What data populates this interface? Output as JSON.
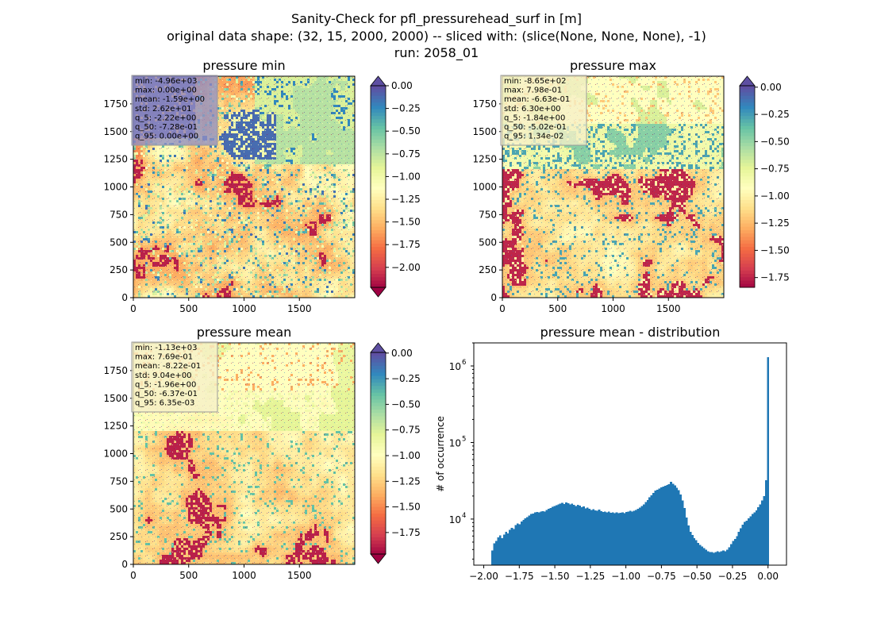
{
  "figure": {
    "title_lines": [
      "Sanity-Check for pfl_pressurehead_surf in [m]",
      "original data shape: (32, 15, 2000, 2000) -- sliced with: (slice(None, None, None), -1)",
      "run: 2058_01"
    ]
  },
  "chart_data": [
    {
      "type": "heatmap",
      "title": "pressure min",
      "colormap": "Spectral",
      "colorbar_extend": "both",
      "xlim": [
        0,
        2000
      ],
      "ylim": [
        0,
        2000
      ],
      "x_ticks": [
        "0",
        "500",
        "1000",
        "1500"
      ],
      "y_ticks": [
        "0",
        "250",
        "500",
        "750",
        "1000",
        "1250",
        "1500",
        "1750"
      ],
      "clim": [
        -2.22,
        0.0
      ],
      "colorbar_ticks": [
        "0.00",
        "-0.25",
        "-0.50",
        "-0.75",
        "-1.00",
        "-1.25",
        "-1.50",
        "-1.75",
        "-2.00"
      ],
      "colorbar_tick_values": [
        0.0,
        -0.25,
        -0.5,
        -0.75,
        -1.0,
        -1.25,
        -1.5,
        -1.75,
        -2.0
      ],
      "stats": [
        "min: -4.96e+03",
        "max: 0.00e+00",
        "mean: -1.59e+00",
        "std: 2.62e+01",
        "q_5: -2.22e+00",
        "q_50: -7.28e-01",
        "q_95: 0.00e+00"
      ],
      "stats_box_color": "#8f8fc4"
    },
    {
      "type": "heatmap",
      "title": "pressure max",
      "colormap": "Spectral",
      "colorbar_extend": "max",
      "xlim": [
        0,
        2000
      ],
      "ylim": [
        0,
        2000
      ],
      "x_ticks": [
        "0",
        "500",
        "1000",
        "1500"
      ],
      "y_ticks": [
        "0",
        "250",
        "500",
        "750",
        "1000",
        "1250",
        "1500",
        "1750"
      ],
      "clim": [
        -1.84,
        0.0134
      ],
      "colorbar_ticks": [
        "0.00",
        "-0.25",
        "-0.50",
        "-0.75",
        "-1.00",
        "-1.25",
        "-1.50",
        "-1.75"
      ],
      "colorbar_tick_values": [
        0.0,
        -0.25,
        -0.5,
        -0.75,
        -1.0,
        -1.25,
        -1.5,
        -1.75
      ],
      "stats": [
        "min: -8.65e+02",
        "max: 7.98e-01",
        "mean: -6.63e-01",
        "std: 6.30e+00",
        "q_5: -1.84e+00",
        "q_50: -5.02e-01",
        "q_95: 1.34e-02"
      ],
      "stats_box_color": "#f6f0c8"
    },
    {
      "type": "heatmap",
      "title": "pressure mean",
      "colormap": "Spectral",
      "colorbar_extend": "both",
      "xlim": [
        0,
        2000
      ],
      "ylim": [
        0,
        2000
      ],
      "x_ticks": [
        "0",
        "500",
        "1000",
        "1500"
      ],
      "y_ticks": [
        "0",
        "250",
        "500",
        "750",
        "1000",
        "1250",
        "1500",
        "1750"
      ],
      "clim": [
        -1.96,
        0.00635
      ],
      "colorbar_ticks": [
        "0.00",
        "-0.25",
        "-0.50",
        "-0.75",
        "-1.00",
        "-1.25",
        "-1.50",
        "-1.75"
      ],
      "colorbar_tick_values": [
        0.0,
        -0.25,
        -0.5,
        -0.75,
        -1.0,
        -1.25,
        -1.5,
        -1.75
      ],
      "stats": [
        "min: -1.13e+03",
        "max: 7.69e-01",
        "mean: -8.22e-01",
        "std: 9.04e+00",
        "q_5: -1.96e+00",
        "q_50: -6.37e-01",
        "q_95: 6.35e-03"
      ],
      "stats_box_color": "#f6f0c8"
    },
    {
      "type": "bar",
      "title": "pressure mean - distribution",
      "ylabel": "# of occurrence",
      "xlabel": "",
      "yscale": "log",
      "bar_color": "#1f77b4",
      "xlim": [
        -2.07,
        0.13
      ],
      "ylim": [
        2500,
        2000000
      ],
      "x_ticks": [
        -2.0,
        -1.75,
        -1.5,
        -1.25,
        -1.0,
        -0.75,
        -0.5,
        -0.25,
        0.0
      ],
      "x_tick_labels": [
        "−2.00",
        "−1.75",
        "−1.50",
        "−1.25",
        "−1.00",
        "−0.75",
        "−0.50",
        "−0.25",
        "0.00"
      ],
      "y_ticks": [
        10000,
        100000,
        1000000
      ],
      "y_tick_labels": [
        "10",
        "10",
        "10"
      ],
      "y_tick_exponents": [
        "4",
        "5",
        "6"
      ],
      "bin_range": [
        -1.96,
        0.0064
      ],
      "values": [
        2500,
        3900,
        4800,
        5200,
        5800,
        6100,
        5600,
        6300,
        6800,
        6500,
        7200,
        7700,
        7400,
        8300,
        8800,
        8600,
        9300,
        9800,
        10200,
        10600,
        11100,
        11600,
        11800,
        12200,
        12400,
        12300,
        12500,
        12700,
        12600,
        13200,
        13600,
        13900,
        14400,
        14800,
        15200,
        15600,
        15900,
        16200,
        15800,
        16400,
        16100,
        15500,
        15900,
        15300,
        14800,
        15400,
        14900,
        14200,
        14600,
        13800,
        14100,
        13600,
        13200,
        13500,
        13000,
        12900,
        13300,
        12700,
        12400,
        12600,
        12200,
        12500,
        12100,
        12300,
        12000,
        12200,
        11900,
        12100,
        12300,
        12000,
        12400,
        12600,
        12800,
        12500,
        12900,
        13200,
        13600,
        14100,
        14800,
        15600,
        16600,
        17800,
        19200,
        20500,
        22000,
        23500,
        24200,
        25000,
        25800,
        26600,
        27200,
        27800,
        28600,
        30500,
        28800,
        27500,
        25600,
        24000,
        21000,
        17500,
        14000,
        10500,
        8200,
        6800,
        6200,
        5600,
        5300,
        4900,
        4600,
        4400,
        4200,
        4000,
        3800,
        3700,
        3700,
        3600,
        3700,
        3800,
        3700,
        3800,
        3900,
        3800,
        4000,
        4300,
        4700,
        5200,
        5500,
        6000,
        6800,
        7600,
        8400,
        9200,
        9500,
        10200,
        10800,
        11600,
        12200,
        13000,
        14200,
        15600,
        17400,
        20000,
        32000,
        1300000
      ]
    }
  ]
}
